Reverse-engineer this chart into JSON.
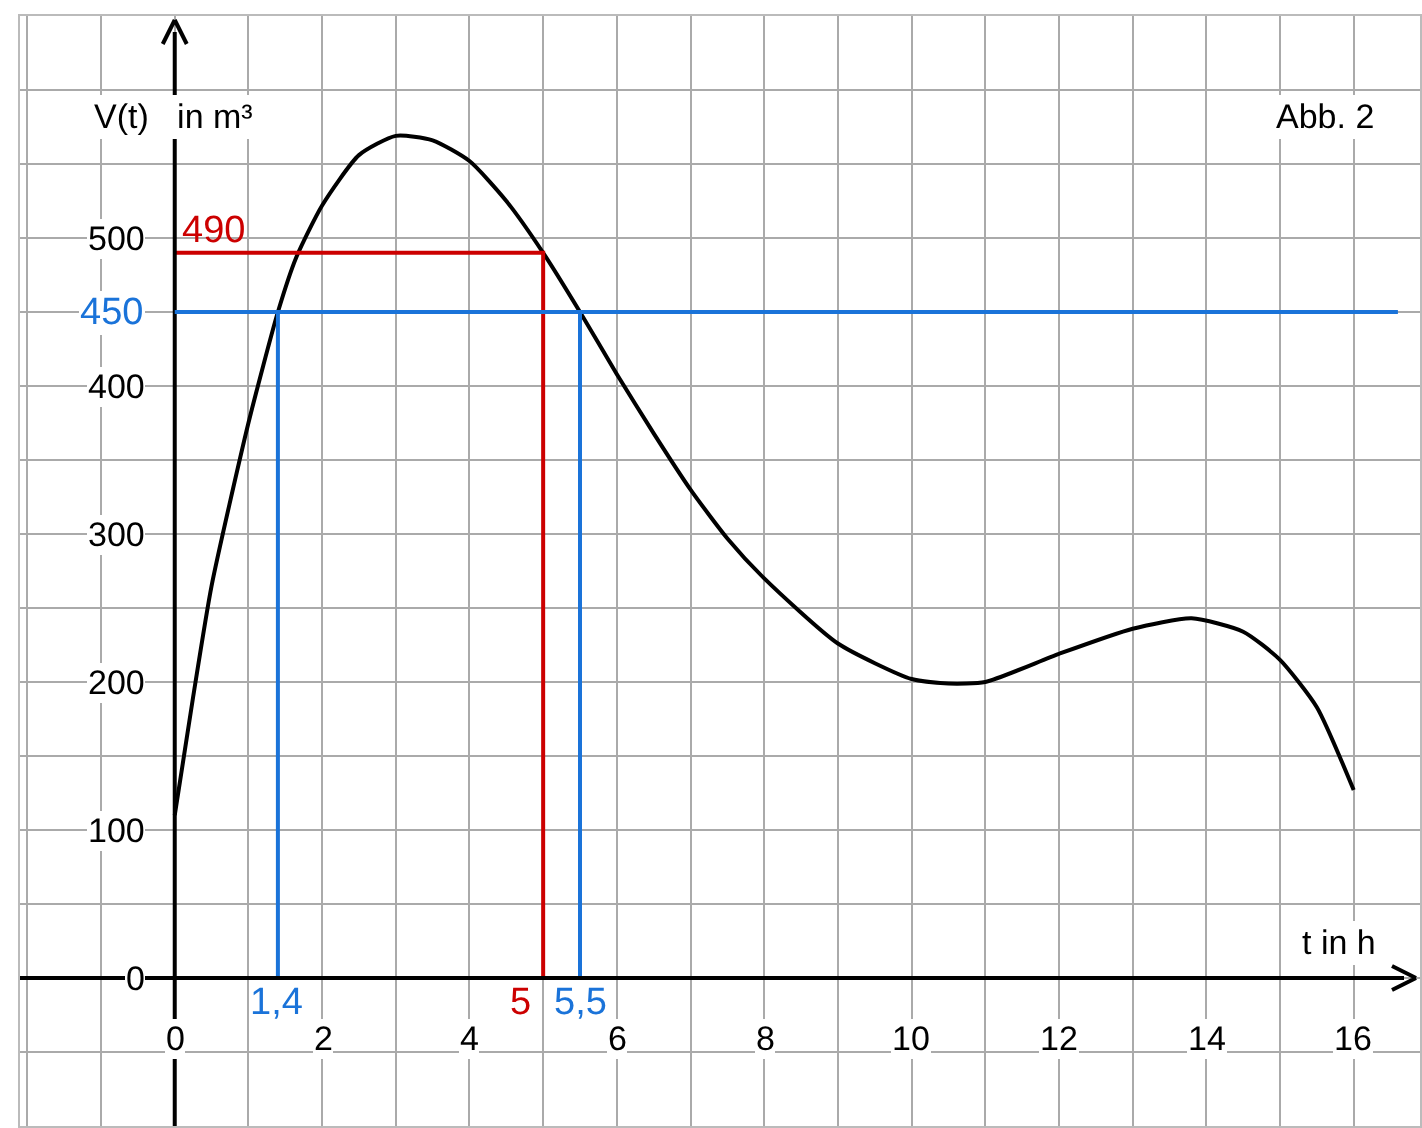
{
  "chart_data": {
    "type": "line",
    "xlabel": "t in h",
    "ylabel": "V(t)   in m³",
    "xlim": [
      -2.1,
      16.9
    ],
    "ylim": [
      -100,
      650
    ],
    "xticks": [
      {
        "value": -2,
        "label": null
      },
      {
        "value": -1,
        "label": null
      },
      0,
      {
        "value": 1,
        "label": null
      },
      2,
      {
        "value": 3,
        "label": null
      },
      4,
      {
        "value": 5,
        "label": null
      },
      6,
      {
        "value": 7,
        "label": null
      },
      8,
      {
        "value": 9,
        "label": null
      },
      10,
      {
        "value": 11,
        "label": null
      },
      12,
      {
        "value": 13,
        "label": null
      },
      14,
      {
        "value": 15,
        "label": null
      },
      16
    ],
    "yticks": [
      {
        "value": -50,
        "label": null
      },
      0,
      {
        "value": 50,
        "label": null
      },
      100,
      {
        "value": 150,
        "label": null
      },
      200,
      {
        "value": 250,
        "label": null
      },
      300,
      {
        "value": 350,
        "label": null
      },
      400,
      {
        "value": 450,
        "label": null
      },
      500,
      {
        "value": 550,
        "label": null
      },
      {
        "value": 600,
        "label": null
      },
      {
        "value": 650,
        "label": null
      }
    ],
    "grid": true,
    "marker": "none",
    "line_style": "solid",
    "series": [
      {
        "color": "#000000",
        "x": [
          0,
          0.25,
          0.5,
          1,
          1.4,
          1.65,
          2,
          2.5,
          3,
          3.5,
          4,
          4.5,
          5,
          5.5,
          6,
          6.5,
          7,
          7.5,
          8,
          9,
          10,
          10.5,
          11,
          12,
          13,
          13.8,
          14.5,
          15,
          15.5,
          16
        ],
        "values": [
          110,
          190,
          265,
          375,
          450,
          487,
          522,
          556,
          569,
          566,
          552,
          525,
          490,
          450,
          408,
          368,
          330,
          297,
          270,
          226,
          202,
          199,
          200,
          219,
          236,
          243,
          234,
          215,
          183,
          127
        ]
      },
      {
        "color": "#cc0000",
        "x": [
          0,
          5,
          5
        ],
        "values": [
          490,
          490,
          0
        ]
      },
      {
        "color": "#1a73d9",
        "x": [
          1.4,
          1.4
        ],
        "values": [
          450,
          0
        ]
      },
      {
        "color": "#1a73d9",
        "x": [
          5.5,
          5.5
        ],
        "values": [
          450,
          0
        ]
      }
    ],
    "ref_lines": [
      {
        "axis": "y",
        "value": 450,
        "label": "450",
        "color": "#1a73d9"
      }
    ],
    "annotations": [
      {
        "text": "490",
        "x": 0,
        "y": 490
      },
      {
        "text": "5",
        "x": 5,
        "y": 0
      },
      {
        "text": "1,4",
        "x": 1.4,
        "y": 0
      },
      {
        "text": "5,5",
        "x": 5.5,
        "y": 0
      },
      "Abb. 2"
    ]
  }
}
